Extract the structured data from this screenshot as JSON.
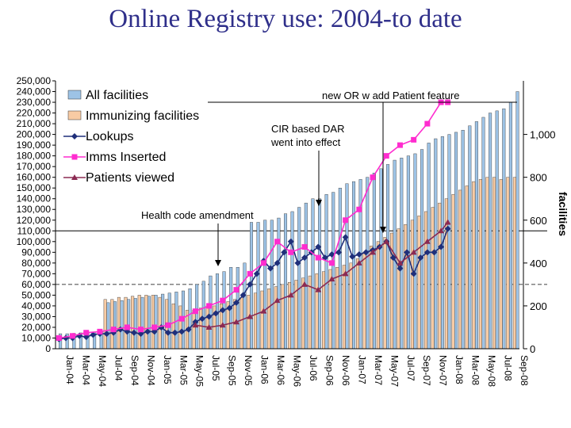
{
  "title": "Online Registry use: 2004-to date",
  "colors": {
    "title": "#2f2f8a",
    "all_facilities": "#9dc3e6",
    "immunizing": "#f8cba4",
    "lookups": "#1f2f7a",
    "imms": "#ff2ccf",
    "patients": "#8b2a52"
  },
  "chart_data": {
    "type": "bar",
    "x_ticks": [
      "Jan-04",
      "Mar-04",
      "May-04",
      "Jul-04",
      "Sep-04",
      "Nov-04",
      "Jan-05",
      "Mar-05",
      "May-05",
      "Jul-05",
      "Sep-05",
      "Nov-05",
      "Jan-06",
      "Mar-06",
      "May-06",
      "Jul-06",
      "Sep-06",
      "Nov-06",
      "Jan-07",
      "Mar-07",
      "May-07",
      "Jul-07",
      "Sep-07",
      "Nov-07",
      "Jan-08",
      "Mar-08",
      "May-08",
      "Jul-08",
      "Sep-08"
    ],
    "left_axis": {
      "min": 0,
      "max": 250000,
      "step": 10000,
      "ticks": [
        "0",
        "10,000",
        "20,000",
        "30,000",
        "40,000",
        "50,000",
        "60,000",
        "70,000",
        "80,000",
        "90,000",
        "100,000",
        "110,000",
        "120,000",
        "130,000",
        "140,000",
        "150,000",
        "160,000",
        "170,000",
        "180,000",
        "190,000",
        "200,000",
        "210,000",
        "220,000",
        "230,000",
        "240,000",
        "250,000"
      ]
    },
    "right_axis": {
      "label": "facilities",
      "min": 0,
      "max": 1250,
      "ticks": [
        "0",
        "200",
        "400",
        "600",
        "800",
        "1,000"
      ]
    },
    "legend": [
      "All facilities",
      "Immunizing facilities",
      "Lookups",
      "Imms Inserted",
      "Patients viewed"
    ],
    "series": [
      {
        "name": "All facilities",
        "kind": "bar",
        "axis": "right",
        "values": [
          70,
          70,
          72,
          74,
          76,
          78,
          80,
          215,
          220,
          225,
          230,
          235,
          240,
          245,
          250,
          255,
          260,
          265,
          270,
          280,
          300,
          315,
          340,
          350,
          360,
          380,
          380,
          400,
          590,
          590,
          600,
          600,
          610,
          630,
          640,
          660,
          680,
          700,
          700,
          720,
          730,
          750,
          770,
          780,
          790,
          800,
          820,
          840,
          860,
          880,
          890,
          900,
          910,
          930,
          960,
          980,
          990,
          1000,
          1010,
          1020,
          1040,
          1060,
          1080,
          1100,
          1110,
          1120,
          1150,
          1200
        ]
      },
      {
        "name": "Immunizing facilities",
        "kind": "bar",
        "axis": "right",
        "values": [
          0,
          0,
          0,
          0,
          0,
          0,
          0,
          230,
          230,
          240,
          240,
          245,
          250,
          250,
          250,
          240,
          230,
          210,
          200,
          180,
          180,
          190,
          200,
          200,
          210,
          220,
          230,
          240,
          250,
          260,
          270,
          280,
          290,
          300,
          310,
          320,
          330,
          340,
          350,
          360,
          370,
          380,
          390,
          400,
          420,
          450,
          480,
          500,
          520,
          540,
          560,
          580,
          600,
          620,
          640,
          660,
          680,
          700,
          720,
          740,
          760,
          780,
          790,
          800,
          800,
          790,
          800,
          800
        ]
      },
      {
        "name": "Lookups",
        "kind": "line",
        "axis": "left",
        "x": [
          0,
          1,
          2,
          3,
          4,
          5,
          6,
          7,
          8,
          9,
          10,
          11,
          12,
          13,
          14,
          15,
          16,
          17,
          18,
          19,
          20,
          21,
          22,
          23,
          24,
          25,
          26,
          27,
          28,
          29,
          30,
          31,
          32,
          33,
          34,
          35,
          36,
          37,
          38,
          39,
          40,
          41,
          42,
          43,
          44,
          45,
          46,
          47,
          48,
          49,
          50,
          51,
          52,
          53,
          54,
          55,
          56,
          57
        ],
        "values": [
          9000,
          10000,
          10000,
          12000,
          11000,
          13000,
          14000,
          14000,
          15000,
          18000,
          16000,
          15000,
          14000,
          16000,
          16000,
          20000,
          15000,
          15000,
          16000,
          18000,
          25000,
          28000,
          30000,
          33000,
          36000,
          38000,
          43000,
          50000,
          60000,
          70000,
          82000,
          75000,
          80000,
          90000,
          100000,
          80000,
          85000,
          90000,
          95000,
          85000,
          88000,
          90000,
          104000,
          86000,
          88000,
          90000,
          92000,
          95000,
          100000,
          85000,
          75000,
          90000,
          70000,
          85000,
          90000,
          90000,
          95000,
          112000
        ]
      },
      {
        "name": "Imms Inserted",
        "kind": "line",
        "axis": "left",
        "x": [
          0,
          2,
          4,
          6,
          8,
          10,
          12,
          14,
          16,
          18,
          20,
          22,
          24,
          26,
          28,
          30,
          32,
          34,
          36,
          38,
          40,
          42,
          44,
          46,
          48,
          50,
          52,
          54,
          56,
          57
        ],
        "values": [
          10000,
          12000,
          15000,
          16000,
          18000,
          20000,
          18000,
          20000,
          22000,
          28000,
          35000,
          40000,
          45000,
          55000,
          70000,
          80000,
          100000,
          90000,
          95000,
          85000,
          80000,
          120000,
          130000,
          160000,
          180000,
          190000,
          195000,
          210000,
          230000,
          230000
        ]
      },
      {
        "name": "Patients viewed",
        "kind": "line",
        "axis": "left",
        "x": [
          20,
          22,
          24,
          26,
          28,
          30,
          32,
          34,
          36,
          38,
          40,
          42,
          44,
          46,
          48,
          50,
          52,
          54,
          56,
          57
        ],
        "values": [
          22000,
          20000,
          22000,
          25000,
          30000,
          35000,
          45000,
          50000,
          60000,
          55000,
          65000,
          70000,
          80000,
          90000,
          100000,
          80000,
          90000,
          100000,
          110000,
          118000
        ]
      }
    ],
    "annotations": [
      {
        "text": "new OR w add Patient feature",
        "at_x": 47
      },
      {
        "text": "CIR based DAR",
        "text2": "went into effect",
        "at_x": 38
      },
      {
        "text": "Health code amendment",
        "at_x": 21
      }
    ]
  }
}
